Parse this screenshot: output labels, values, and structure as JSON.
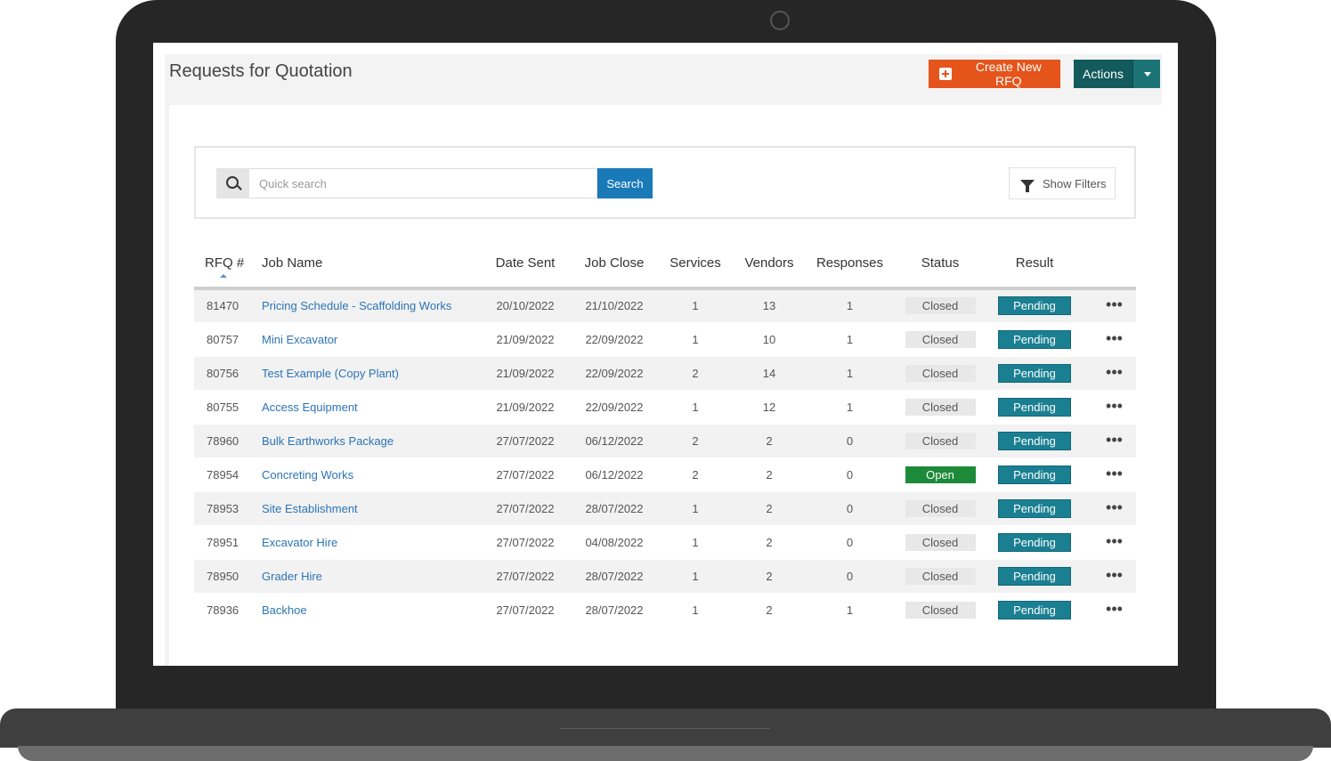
{
  "page": {
    "title": "Requests for Quotation",
    "create_button": "Create New RFQ",
    "actions_button": "Actions"
  },
  "search": {
    "placeholder": "Quick search",
    "button": "Search",
    "filters_button": "Show Filters"
  },
  "table": {
    "headers": [
      "RFQ #",
      "Job Name",
      "Date Sent",
      "Job Close",
      "Services",
      "Vendors",
      "Responses",
      "Status",
      "Result"
    ],
    "rows": [
      {
        "rfq": "81470",
        "job": "Pricing Schedule - Scaffolding Works",
        "sent": "20/10/2022",
        "close": "21/10/2022",
        "services": "1",
        "vendors": "13",
        "responses": "1",
        "status": "Closed",
        "result": "Pending"
      },
      {
        "rfq": "80757",
        "job": "Mini Excavator",
        "sent": "21/09/2022",
        "close": "22/09/2022",
        "services": "1",
        "vendors": "10",
        "responses": "1",
        "status": "Closed",
        "result": "Pending"
      },
      {
        "rfq": "80756",
        "job": "Test Example (Copy Plant)",
        "sent": "21/09/2022",
        "close": "22/09/2022",
        "services": "2",
        "vendors": "14",
        "responses": "1",
        "status": "Closed",
        "result": "Pending"
      },
      {
        "rfq": "80755",
        "job": "Access Equipment",
        "sent": "21/09/2022",
        "close": "22/09/2022",
        "services": "1",
        "vendors": "12",
        "responses": "1",
        "status": "Closed",
        "result": "Pending"
      },
      {
        "rfq": "78960",
        "job": "Bulk Earthworks Package",
        "sent": "27/07/2022",
        "close": "06/12/2022",
        "services": "2",
        "vendors": "2",
        "responses": "0",
        "status": "Closed",
        "result": "Pending"
      },
      {
        "rfq": "78954",
        "job": "Concreting Works",
        "sent": "27/07/2022",
        "close": "06/12/2022",
        "services": "2",
        "vendors": "2",
        "responses": "0",
        "status": "Open",
        "result": "Pending"
      },
      {
        "rfq": "78953",
        "job": "Site Establishment",
        "sent": "27/07/2022",
        "close": "28/07/2022",
        "services": "1",
        "vendors": "2",
        "responses": "0",
        "status": "Closed",
        "result": "Pending"
      },
      {
        "rfq": "78951",
        "job": "Excavator Hire",
        "sent": "27/07/2022",
        "close": "04/08/2022",
        "services": "1",
        "vendors": "2",
        "responses": "0",
        "status": "Closed",
        "result": "Pending"
      },
      {
        "rfq": "78950",
        "job": "Grader Hire",
        "sent": "27/07/2022",
        "close": "28/07/2022",
        "services": "1",
        "vendors": "2",
        "responses": "0",
        "status": "Closed",
        "result": "Pending"
      },
      {
        "rfq": "78936",
        "job": "Backhoe",
        "sent": "27/07/2022",
        "close": "28/07/2022",
        "services": "1",
        "vendors": "2",
        "responses": "1",
        "status": "Closed",
        "result": "Pending"
      }
    ]
  },
  "colors": {
    "create_button": "#e4541b",
    "actions_button": "#125a5c",
    "search_button": "#1a7ab8",
    "status_open": "#1d8a3a",
    "result_pending": "#1b7f92",
    "link": "#2b74b5"
  },
  "icons": {
    "search": "search-icon",
    "filter": "filter-icon",
    "plus": "plus-icon",
    "caret": "chevron-down-icon",
    "more": "more-options-icon",
    "sort": "sort-up-icon"
  }
}
